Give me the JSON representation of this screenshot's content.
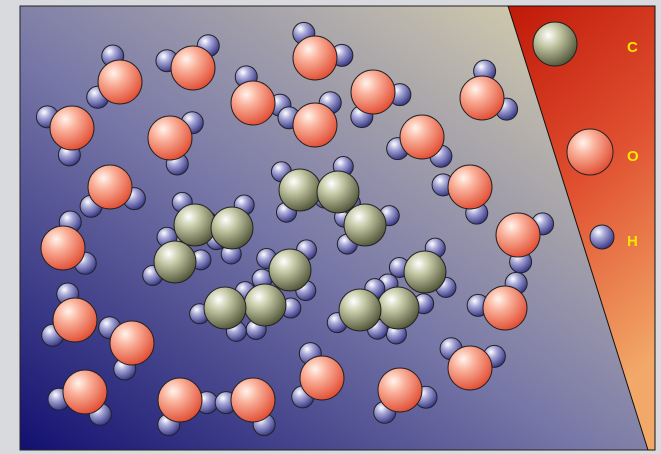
{
  "legend": [
    {
      "label": "C"
    },
    {
      "label": "O"
    },
    {
      "label": "H"
    }
  ]
}
